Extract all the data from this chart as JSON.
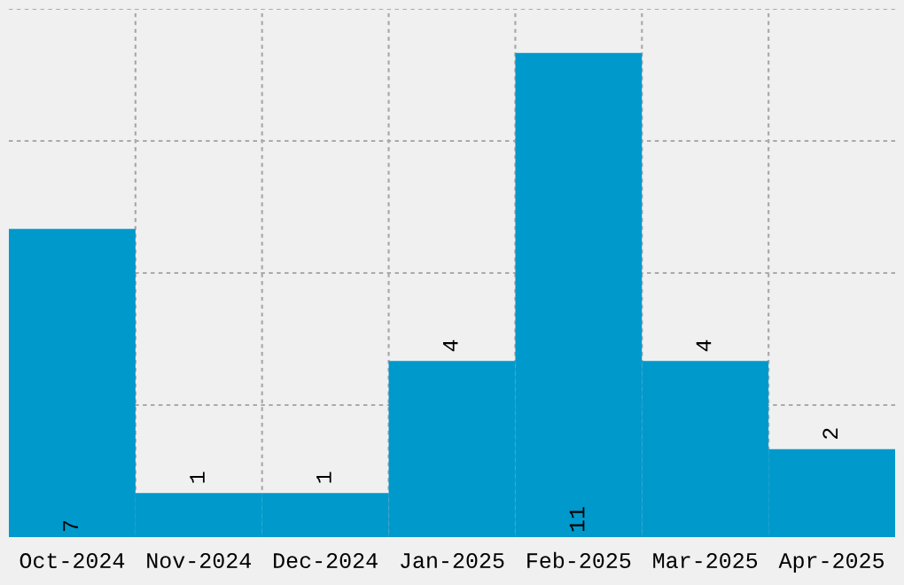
{
  "chart_data": {
    "type": "bar",
    "categories": [
      "Oct-2024",
      "Nov-2024",
      "Dec-2024",
      "Jan-2025",
      "Feb-2025",
      "Mar-2025",
      "Apr-2025"
    ],
    "values": [
      7,
      1,
      1,
      4,
      11,
      4,
      2
    ],
    "color": "#0099cc",
    "ylim": [
      0,
      12
    ],
    "yticks": [
      {
        "value": 3,
        "label": null
      },
      {
        "value": 6,
        "label": null
      },
      {
        "value": 9,
        "label": null
      },
      {
        "value": 12,
        "label": null
      }
    ],
    "grid": true,
    "data_labels": true,
    "tick_labels": "x"
  }
}
